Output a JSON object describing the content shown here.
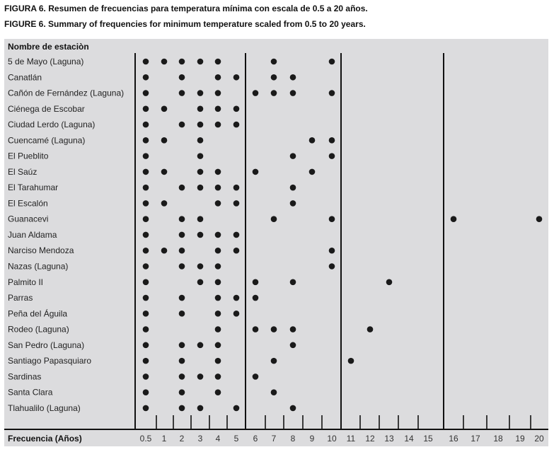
{
  "caption_es": "FIGURA 6. Resumen de frecuencias para temperatura mínima con escala de 0.5 a 20 años.",
  "caption_en": "FIGURE 6. Summary of frequencies for minimum temperature scaled from 0.5 to 20 years.",
  "chart_data": {
    "type": "scatter",
    "row_header": "Nombre de estaciòn",
    "xlabel": "Frecuencia (Años)",
    "x_ticks": [
      "0.5",
      "1",
      "2",
      "3",
      "4",
      "5",
      "6",
      "7",
      "8",
      "9",
      "10",
      "11",
      "12",
      "13",
      "14",
      "15",
      "16",
      "17",
      "18",
      "19",
      "20"
    ],
    "dot_color": "#1a1a1a",
    "background_color": "#dcdcde",
    "rows": [
      {
        "name": "5 de Mayo (Laguna)",
        "x": [
          0.5,
          1,
          2,
          3,
          4,
          7,
          10
        ]
      },
      {
        "name": "Canatlán",
        "x": [
          0.5,
          2,
          4,
          5,
          7,
          8
        ]
      },
      {
        "name": "Cañón de Fernández (Laguna)",
        "x": [
          0.5,
          2,
          3,
          4,
          6,
          7,
          8,
          10
        ]
      },
      {
        "name": "Ciénega de Escobar",
        "x": [
          0.5,
          1,
          3,
          4,
          5
        ]
      },
      {
        "name": "Ciudad Lerdo (Laguna)",
        "x": [
          0.5,
          2,
          3,
          4,
          5
        ]
      },
      {
        "name": "Cuencamé (Laguna)",
        "x": [
          0.5,
          1,
          3,
          9,
          10
        ]
      },
      {
        "name": "El Pueblito",
        "x": [
          0.5,
          3,
          8,
          10
        ]
      },
      {
        "name": "El Saúz",
        "x": [
          0.5,
          1,
          3,
          4,
          6,
          9
        ]
      },
      {
        "name": "El Tarahumar",
        "x": [
          0.5,
          2,
          3,
          4,
          5,
          8
        ]
      },
      {
        "name": "El Escalón",
        "x": [
          0.5,
          1,
          4,
          5,
          8
        ]
      },
      {
        "name": "Guanacevi",
        "x": [
          0.5,
          2,
          3,
          7,
          10,
          16,
          20
        ]
      },
      {
        "name": "Juan Aldama",
        "x": [
          0.5,
          2,
          3,
          4,
          5
        ]
      },
      {
        "name": "Narciso Mendoza",
        "x": [
          0.5,
          1,
          2,
          4,
          5,
          10
        ]
      },
      {
        "name": "Nazas (Laguna)",
        "x": [
          0.5,
          2,
          3,
          4,
          10
        ]
      },
      {
        "name": "Palmito II",
        "x": [
          0.5,
          3,
          4,
          6,
          8,
          13
        ]
      },
      {
        "name": "Parras",
        "x": [
          0.5,
          2,
          4,
          5,
          6
        ]
      },
      {
        "name": "Peña del Águila",
        "x": [
          0.5,
          2,
          4,
          5
        ]
      },
      {
        "name": "Rodeo (Laguna)",
        "x": [
          0.5,
          4,
          6,
          7,
          8,
          12
        ]
      },
      {
        "name": "San Pedro (Laguna)",
        "x": [
          0.5,
          2,
          3,
          4,
          8
        ]
      },
      {
        "name": "Santiago Papasquiaro",
        "x": [
          0.5,
          2,
          4,
          7,
          11
        ]
      },
      {
        "name": "Sardinas",
        "x": [
          0.5,
          2,
          3,
          4,
          6
        ]
      },
      {
        "name": "Santa Clara",
        "x": [
          0.5,
          2,
          4,
          7
        ]
      },
      {
        "name": "Tlahualilo (Laguna)",
        "x": [
          0.5,
          2,
          3,
          5,
          8
        ]
      }
    ]
  }
}
